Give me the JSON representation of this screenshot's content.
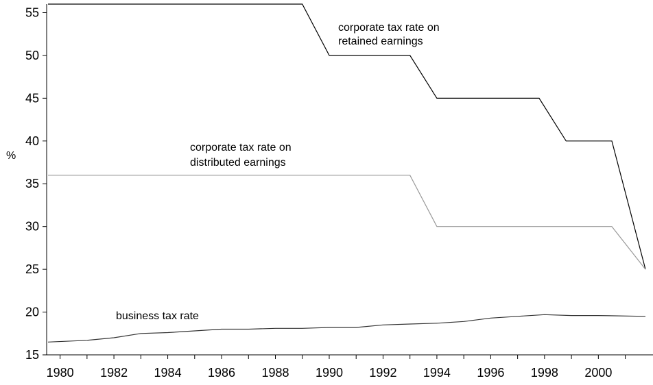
{
  "chart_data": {
    "type": "line",
    "title": "",
    "xlabel": "",
    "ylabel": "%",
    "xlim": [
      1979.5,
      2001.75
    ],
    "ylim": [
      15,
      56
    ],
    "grid": false,
    "legend": "none",
    "x_ticks": [
      "1980",
      "1982",
      "1984",
      "1986",
      "1988",
      "1990",
      "1992",
      "1994",
      "1996",
      "1998",
      "2000"
    ],
    "y_ticks": [
      "15",
      "20",
      "25",
      "30",
      "35",
      "40",
      "45",
      "50",
      "55"
    ],
    "series": [
      {
        "color": "#000000",
        "points": [
          [
            1979.55,
            56
          ],
          [
            1989.0,
            56
          ],
          [
            1990.0,
            50
          ],
          [
            1993.0,
            50
          ],
          [
            1994.0,
            45
          ],
          [
            1997.8,
            45
          ],
          [
            1998.8,
            40
          ],
          [
            1999.4,
            40
          ],
          [
            2000.5,
            40
          ],
          [
            2001.75,
            25
          ]
        ]
      },
      {
        "color": "#999999",
        "points": [
          [
            1979.55,
            36
          ],
          [
            1993.0,
            36
          ],
          [
            1994.0,
            30
          ],
          [
            2000.5,
            30
          ],
          [
            2001.75,
            25
          ]
        ]
      },
      {
        "color": "#333333",
        "points": [
          [
            1979.55,
            16.5
          ],
          [
            1981.0,
            16.7
          ],
          [
            1982.0,
            17.0
          ],
          [
            1983.0,
            17.5
          ],
          [
            1984.0,
            17.6
          ],
          [
            1985.0,
            17.8
          ],
          [
            1986.0,
            18.0
          ],
          [
            1987.0,
            18.0
          ],
          [
            1988.0,
            18.1
          ],
          [
            1989.0,
            18.1
          ],
          [
            1990.0,
            18.2
          ],
          [
            1991.0,
            18.2
          ],
          [
            1992.0,
            18.5
          ],
          [
            1993.0,
            18.6
          ],
          [
            1994.0,
            18.7
          ],
          [
            1995.0,
            18.9
          ],
          [
            1996.0,
            19.3
          ],
          [
            1997.0,
            19.5
          ],
          [
            1998.0,
            19.7
          ],
          [
            1999.0,
            19.6
          ],
          [
            2000.0,
            19.6
          ],
          [
            2001.75,
            19.5
          ]
        ]
      }
    ],
    "annotations": [
      {
        "lines": [
          "corporate tax rate on",
          "retained earnings"
        ]
      },
      {
        "lines": [
          "corporate tax rate on",
          "distributed earnings"
        ]
      },
      {
        "lines": [
          "business tax rate"
        ]
      }
    ]
  }
}
